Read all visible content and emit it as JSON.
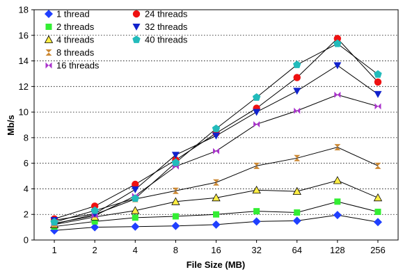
{
  "chart_data": {
    "type": "line",
    "title": "",
    "xlabel": "File Size (MB)",
    "ylabel": "Mb/s",
    "categories": [
      "1",
      "2",
      "4",
      "8",
      "16",
      "32",
      "64",
      "128",
      "256"
    ],
    "ylim": [
      0,
      18
    ],
    "yticks": [
      0,
      2,
      4,
      6,
      8,
      10,
      12,
      14,
      16,
      18
    ],
    "grid": "horizontal-dotted",
    "legend_placement": "top-left",
    "series": [
      {
        "name": "1 thread",
        "marker": "diamond",
        "color": "#1f3fff",
        "values": [
          0.75,
          1.0,
          1.05,
          1.1,
          1.2,
          1.45,
          1.5,
          1.95,
          1.4
        ]
      },
      {
        "name": "2 threads",
        "marker": "square",
        "color": "#33ee33",
        "values": [
          1.05,
          1.45,
          1.75,
          1.85,
          2.0,
          2.25,
          2.15,
          3.0,
          2.2
        ]
      },
      {
        "name": "4 threads",
        "marker": "triangle-up",
        "color": "#ffee44",
        "values": [
          1.2,
          1.8,
          2.3,
          3.0,
          3.3,
          3.9,
          3.8,
          4.65,
          3.3
        ]
      },
      {
        "name": "8 threads",
        "marker": "hourglass",
        "color": "#cc8833",
        "values": [
          1.25,
          2.0,
          3.2,
          3.85,
          4.5,
          5.8,
          6.4,
          7.25,
          5.8
        ]
      },
      {
        "name": "16 threads",
        "marker": "bowtie",
        "color": "#aa33cc",
        "values": [
          1.3,
          1.9,
          3.45,
          5.75,
          6.95,
          9.05,
          10.1,
          11.35,
          10.45
        ]
      },
      {
        "name": "24 threads",
        "marker": "circle",
        "color": "#ee1111",
        "values": [
          1.65,
          2.65,
          4.35,
          6.25,
          8.35,
          10.3,
          12.7,
          15.75,
          12.35
        ]
      },
      {
        "name": "32 threads",
        "marker": "triangle-down",
        "color": "#1122cc",
        "values": [
          1.55,
          2.05,
          3.95,
          6.65,
          8.15,
          10.0,
          11.65,
          13.65,
          11.4
        ]
      },
      {
        "name": "40 threads",
        "marker": "pentagon",
        "color": "#22bbbb",
        "values": [
          1.4,
          2.3,
          3.25,
          6.05,
          8.7,
          11.15,
          13.7,
          15.35,
          12.95
        ]
      }
    ]
  }
}
